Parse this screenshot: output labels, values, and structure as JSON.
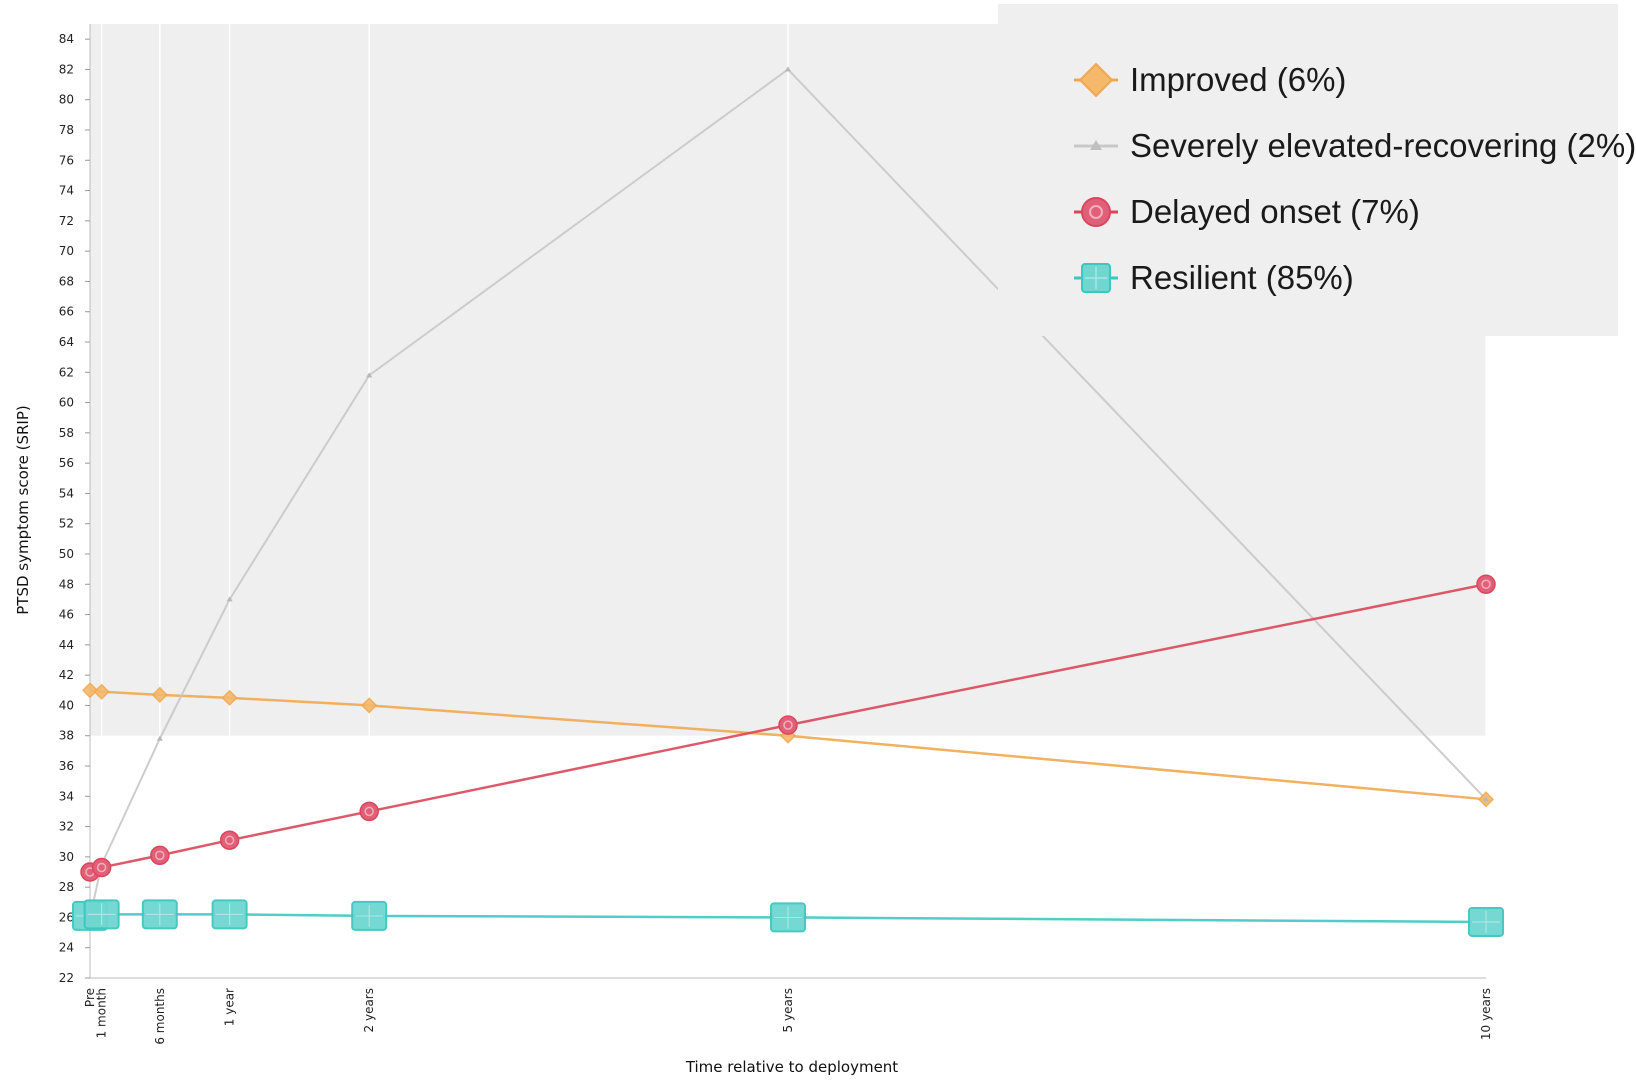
{
  "chart_data": {
    "type": "line",
    "xlabel": "Time relative to deployment",
    "ylabel": "PTSD symptom score (SRIP)",
    "ylim": [
      22,
      85
    ],
    "yticks": [
      22,
      24,
      26,
      28,
      30,
      32,
      34,
      36,
      38,
      40,
      42,
      44,
      46,
      48,
      50,
      52,
      54,
      56,
      58,
      60,
      62,
      64,
      66,
      68,
      70,
      72,
      74,
      76,
      78,
      80,
      82,
      84
    ],
    "categories": [
      "Pre",
      "1 month",
      "6 months",
      "1 year",
      "2 years",
      "5 years",
      "10 years"
    ],
    "x_months": [
      0,
      1,
      6,
      12,
      24,
      60,
      120
    ],
    "grid": "vertical gridlines at each time point",
    "legend_position": "top-right",
    "shaded_band": {
      "from": 38,
      "to": 85,
      "color": "#efefef"
    },
    "series": [
      {
        "name": "Improved (6%)",
        "color": "#f0a850",
        "marker": "diamond",
        "values": [
          41,
          40.9,
          40.7,
          40.5,
          40.0,
          38.0,
          33.8
        ]
      },
      {
        "name": "Severely elevated-recovering (2%)",
        "color": "#c8c8c8",
        "marker": "triangle",
        "values": [
          26,
          29.5,
          37.8,
          47.0,
          61.8,
          82.0,
          33.8
        ]
      },
      {
        "name": "Delayed onset (7%)",
        "color": "#d9475a",
        "marker": "circle",
        "values": [
          29,
          29.3,
          30.1,
          31.1,
          33.0,
          38.7,
          48.0
        ]
      },
      {
        "name": "Resilient (85%)",
        "color": "#3ec6c0",
        "marker": "square",
        "values": [
          26.1,
          26.2,
          26.2,
          26.2,
          26.1,
          26.0,
          25.7
        ]
      }
    ]
  }
}
